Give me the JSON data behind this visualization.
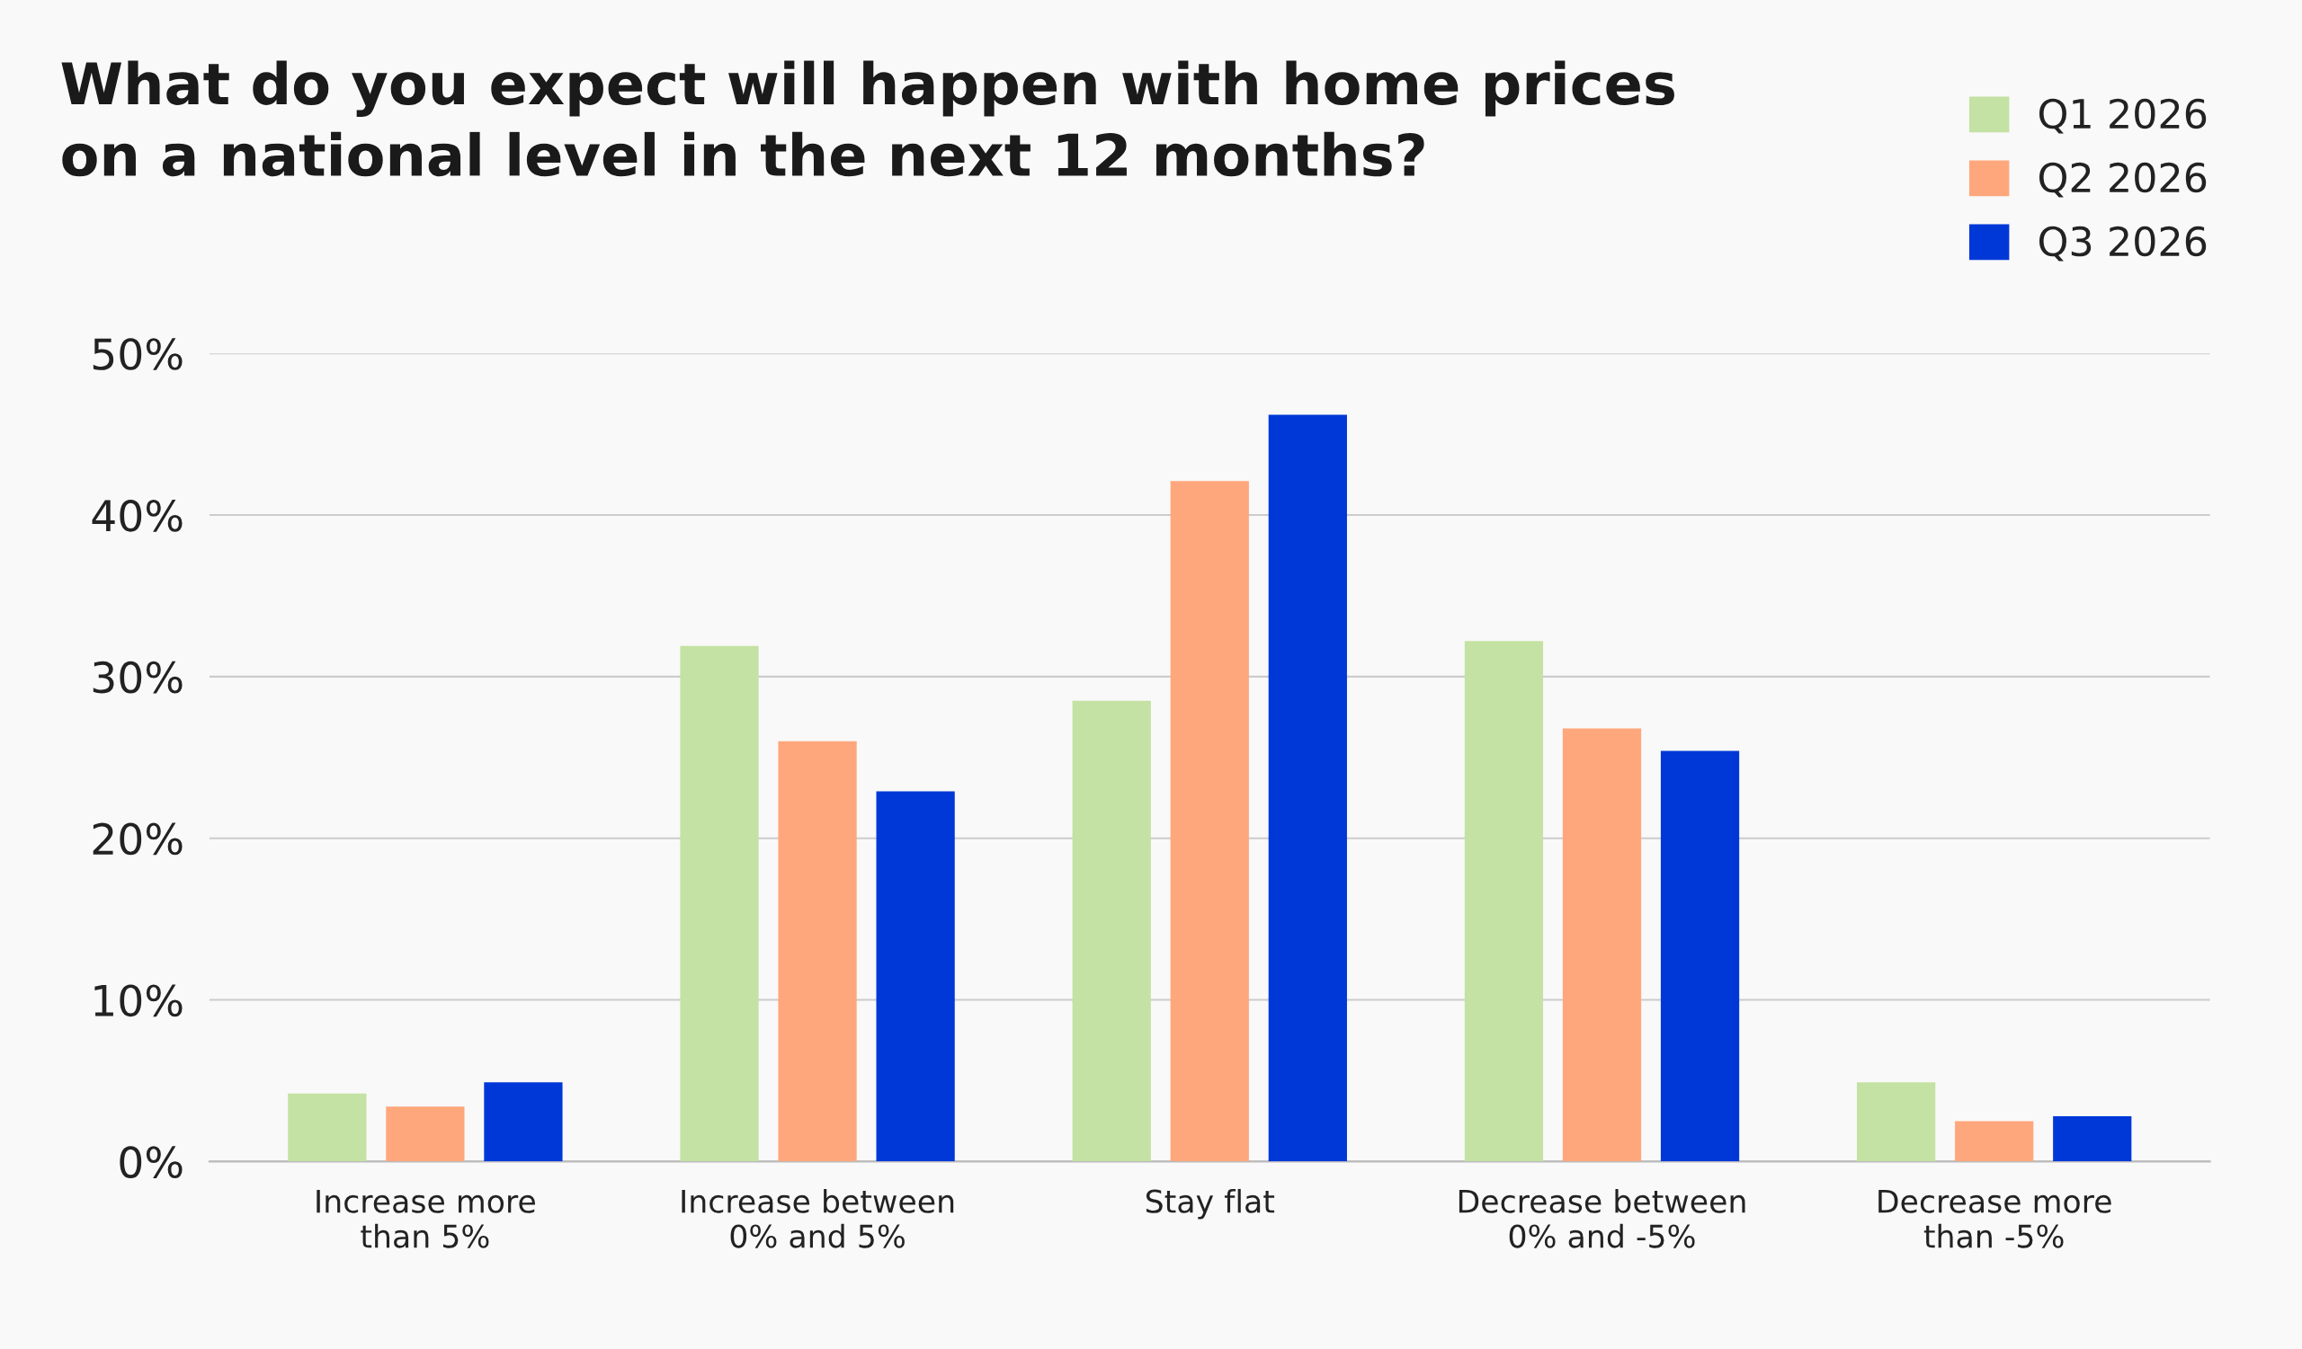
{
  "chart_data": {
    "type": "bar",
    "title": "What do you expect will happen with home prices\non a national level in the next 12 months?",
    "categories": [
      "Increase more\nthan 5%",
      "Increase between\n0% and 5%",
      "Stay flat",
      "Decrease between\n0% and -5%",
      "Decrease more\nthan -5%"
    ],
    "series": [
      {
        "name": "Q1 2026",
        "color": "#c4e2a3",
        "values": [
          4.2,
          31.9,
          28.5,
          32.2,
          4.9
        ]
      },
      {
        "name": "Q2 2026",
        "color": "#ffa77c",
        "values": [
          3.4,
          26.0,
          42.1,
          26.8,
          2.5
        ]
      },
      {
        "name": "Q3 2026",
        "color": "#0038d8",
        "values": [
          4.9,
          22.9,
          46.2,
          25.4,
          2.8
        ]
      }
    ],
    "ylim": [
      0,
      50
    ],
    "yticks": [
      {
        "value": 0,
        "label": "0%"
      },
      {
        "value": 10,
        "label": "10%"
      },
      {
        "value": 20,
        "label": "20%"
      },
      {
        "value": 30,
        "label": "30%"
      },
      {
        "value": 40,
        "label": "40%"
      },
      {
        "value": 50,
        "label": "50%"
      }
    ],
    "grid": "y",
    "legend": "top right"
  }
}
